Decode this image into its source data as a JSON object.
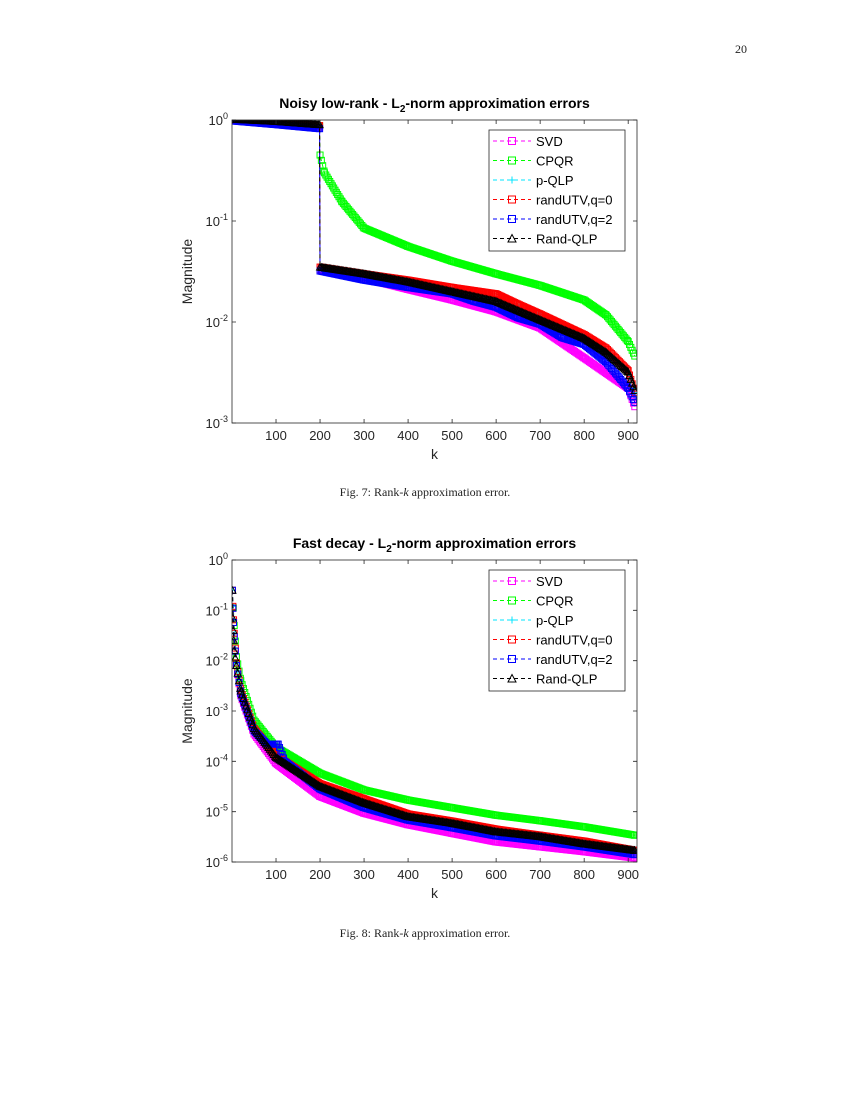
{
  "page": {
    "page_number": "20",
    "captions": [
      {
        "prefix": "Fig. 7: Rank-",
        "var": "k",
        "suffix": " approximation error."
      },
      {
        "prefix": "Fig. 8: Rank-",
        "var": "k",
        "suffix": " approximation error."
      }
    ]
  },
  "chart_data": [
    {
      "type": "line",
      "title": {
        "pre": "Noisy low-rank - L",
        "sub": "2",
        "post": "-norm approximation errors"
      },
      "xlabel": "k",
      "ylabel": "Magnitude",
      "xscale": "linear",
      "yscale": "log",
      "xlim": [
        0,
        920
      ],
      "ylim": [
        0.001,
        1
      ],
      "xticks": [
        100,
        200,
        300,
        400,
        500,
        600,
        700,
        800,
        900
      ],
      "yticks": [
        {
          "base": "10",
          "exp": "0",
          "value": 1
        },
        {
          "base": "10",
          "exp": "-1",
          "value": 0.1
        },
        {
          "base": "10",
          "exp": "-2",
          "value": 0.01
        },
        {
          "base": "10",
          "exp": "-3",
          "value": 0.001
        }
      ],
      "legend_placement": "top-right",
      "grid": false,
      "series": [
        {
          "name": "SVD",
          "color": "#ff00ff",
          "marker": "square",
          "x": [
            1,
            100,
            199,
            200,
            300,
            400,
            500,
            600,
            700,
            800,
            900,
            915
          ],
          "y": [
            1.0,
            0.93,
            0.85,
            0.033,
            0.027,
            0.021,
            0.0165,
            0.0126,
            0.0087,
            0.0044,
            0.0022,
            0.00145
          ]
        },
        {
          "name": "CPQR",
          "color": "#00ff00",
          "marker": "square",
          "x": [
            1,
            100,
            199,
            200,
            210,
            250,
            300,
            400,
            500,
            600,
            700,
            800,
            850,
            900,
            915
          ],
          "y": [
            1.0,
            0.95,
            0.88,
            0.45,
            0.3,
            0.155,
            0.085,
            0.056,
            0.04,
            0.03,
            0.023,
            0.0165,
            0.0117,
            0.0064,
            0.0046
          ]
        },
        {
          "name": "p-QLP",
          "color": "#00e5ff",
          "marker": "plus",
          "x": [
            1,
            100,
            199,
            200,
            300,
            400,
            500,
            600,
            700,
            780,
            850,
            900,
            915
          ],
          "y": [
            1.0,
            0.95,
            0.88,
            0.035,
            0.03,
            0.025,
            0.021,
            0.017,
            0.012,
            0.0085,
            0.005,
            0.0031,
            0.002
          ]
        },
        {
          "name": "randUTV,q=0",
          "color": "#ff0000",
          "marker": "square",
          "x": [
            1,
            100,
            199,
            200,
            300,
            400,
            500,
            600,
            650,
            700,
            800,
            850,
            900,
            915
          ],
          "y": [
            1.0,
            0.95,
            0.88,
            0.035,
            0.03,
            0.026,
            0.022,
            0.019,
            0.015,
            0.012,
            0.0075,
            0.0055,
            0.0033,
            0.002
          ]
        },
        {
          "name": "randUTV,q=2",
          "color": "#0000ff",
          "marker": "square",
          "x": [
            1,
            100,
            199,
            200,
            300,
            400,
            500,
            550,
            600,
            650,
            700,
            750,
            800,
            850,
            900,
            915
          ],
          "y": [
            0.98,
            0.9,
            0.82,
            0.032,
            0.026,
            0.022,
            0.019,
            0.016,
            0.014,
            0.011,
            0.0095,
            0.007,
            0.006,
            0.004,
            0.0022,
            0.0016
          ]
        },
        {
          "name": "Rand-QLP",
          "color": "#000000",
          "marker": "triangle",
          "x": [
            1,
            100,
            199,
            200,
            300,
            400,
            500,
            600,
            700,
            800,
            850,
            900,
            915
          ],
          "y": [
            1.02,
            0.97,
            0.9,
            0.035,
            0.03,
            0.025,
            0.02,
            0.016,
            0.0105,
            0.0069,
            0.005,
            0.0032,
            0.0021
          ]
        }
      ]
    },
    {
      "type": "line",
      "title": {
        "pre": "Fast decay - L",
        "sub": "2",
        "post": "-norm approximation errors"
      },
      "xlabel": "k",
      "ylabel": "Magnitude",
      "xscale": "linear",
      "yscale": "log",
      "xlim": [
        0,
        920
      ],
      "ylim": [
        1e-06,
        1
      ],
      "xticks": [
        100,
        200,
        300,
        400,
        500,
        600,
        700,
        800,
        900
      ],
      "yticks": [
        {
          "base": "10",
          "exp": "0",
          "value": 1
        },
        {
          "base": "10",
          "exp": "-1",
          "value": 0.1
        },
        {
          "base": "10",
          "exp": "-2",
          "value": 0.01
        },
        {
          "base": "10",
          "exp": "-3",
          "value": 0.001
        },
        {
          "base": "10",
          "exp": "-4",
          "value": 0.0001
        },
        {
          "base": "10",
          "exp": "-5",
          "value": 1e-05
        },
        {
          "base": "10",
          "exp": "-6",
          "value": 1e-06
        }
      ],
      "legend_placement": "top-right",
      "grid": false,
      "series": [
        {
          "name": "SVD",
          "color": "#ff00ff",
          "marker": "square",
          "x": [
            1,
            2,
            5,
            10,
            20,
            50,
            100,
            200,
            300,
            400,
            500,
            600,
            700,
            800,
            915
          ],
          "y": [
            0.25,
            0.11,
            0.03,
            0.008,
            0.002,
            0.00035,
            9e-05,
            2e-05,
            9.3e-06,
            5.5e-06,
            3.7e-06,
            2.5e-06,
            2e-06,
            1.6e-06,
            1.2e-06
          ]
        },
        {
          "name": "CPQR",
          "color": "#00ff00",
          "marker": "square",
          "x": [
            1,
            5,
            10,
            20,
            50,
            100,
            200,
            300,
            400,
            500,
            600,
            700,
            800,
            915
          ],
          "y": [
            0.25,
            0.05,
            0.012,
            0.004,
            0.00066,
            0.00019,
            5.8e-05,
            2.7e-05,
            1.7e-05,
            1.2e-05,
            8.5e-06,
            6.6e-06,
            5e-06,
            3.4e-06
          ]
        },
        {
          "name": "p-QLP",
          "color": "#00e5ff",
          "marker": "plus",
          "x": [
            1,
            2,
            5,
            10,
            20,
            50,
            100,
            200,
            300,
            400,
            500,
            600,
            700,
            800,
            915
          ],
          "y": [
            0.25,
            0.12,
            0.035,
            0.009,
            0.0025,
            0.00045,
            0.00012,
            3.3e-05,
            1.5e-05,
            8.2e-06,
            6e-06,
            4.1e-06,
            3.3e-06,
            2.4e-06,
            1.8e-06
          ]
        },
        {
          "name": "randUTV,q=0",
          "color": "#ff0000",
          "marker": "square",
          "x": [
            1,
            2,
            5,
            10,
            20,
            50,
            100,
            200,
            300,
            400,
            500,
            600,
            700,
            800,
            915
          ],
          "y": [
            0.25,
            0.12,
            0.035,
            0.009,
            0.0025,
            0.00045,
            0.00013,
            3.6e-05,
            1.8e-05,
            9e-06,
            6.5e-06,
            4.5e-06,
            3.4e-06,
            2.6e-06,
            1.7e-06
          ]
        },
        {
          "name": "randUTV,q=2",
          "color": "#0000ff",
          "marker": "square",
          "x": [
            1,
            2,
            5,
            10,
            20,
            50,
            80,
            105,
            120,
            200,
            300,
            400,
            500,
            600,
            700,
            800,
            915
          ],
          "y": [
            0.25,
            0.11,
            0.03,
            0.008,
            0.0022,
            0.0004,
            0.00022,
            0.00022,
            0.0001,
            2.8e-05,
            1.2e-05,
            6.8e-06,
            4.8e-06,
            3.3e-06,
            2.6e-06,
            2e-06,
            1.4e-06
          ]
        },
        {
          "name": "Rand-QLP",
          "color": "#000000",
          "marker": "triangle",
          "x": [
            1,
            2,
            3,
            5,
            10,
            20,
            50,
            100,
            200,
            300,
            400,
            500,
            600,
            700,
            800,
            915
          ],
          "y": [
            0.25,
            0.07,
            0.04,
            0.016,
            0.008,
            0.0025,
            0.00045,
            0.00012,
            3.2e-05,
            1.5e-05,
            8e-06,
            5.9e-06,
            4e-06,
            3.2e-06,
            2.3e-06,
            1.7e-06
          ]
        }
      ]
    }
  ]
}
